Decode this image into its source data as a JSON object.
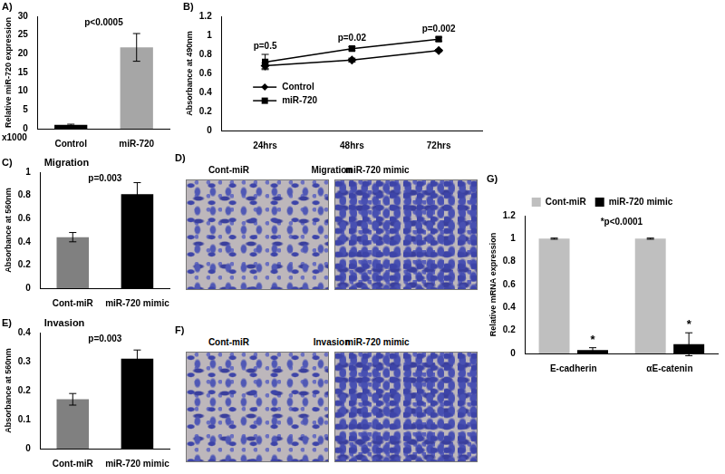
{
  "chart_data": [
    {
      "panel": "A)",
      "type": "bar",
      "categories": [
        "Control",
        "miR-720"
      ],
      "values": [
        1,
        21.7
      ],
      "errors": [
        0.2,
        3.7
      ],
      "colors": [
        "#000000",
        "#a6a6a6"
      ],
      "ylabel": "Relative miR-720 expression",
      "y_note": "x1000",
      "ylim": [
        0,
        30
      ],
      "yticks": [
        0,
        5,
        10,
        15,
        20,
        25,
        30
      ],
      "grid": false,
      "annotations": [
        {
          "text": "p<0.0005"
        }
      ]
    },
    {
      "panel": "B)",
      "type": "line",
      "categories": [
        "24hrs",
        "48hrs",
        "72hrs"
      ],
      "series": [
        {
          "name": "Control",
          "color": "#000000",
          "marker": "diamond",
          "values": [
            0.68,
            0.74,
            0.84
          ],
          "errors": [
            0.03,
            0.02,
            0.01
          ]
        },
        {
          "name": "miR-720",
          "color": "#000000",
          "marker": "square",
          "values": [
            0.72,
            0.86,
            0.96
          ],
          "errors": [
            0.08,
            0.02,
            0.02
          ]
        }
      ],
      "ylabel": "Absorbance at 490nm",
      "ylim": [
        0,
        1.2
      ],
      "yticks": [
        0,
        0.2,
        0.4,
        0.6,
        0.8,
        1,
        1.2
      ],
      "grid": false,
      "legend": "bottom",
      "annotations": [
        {
          "text": "p=0.5",
          "category": "24hrs"
        },
        {
          "text": "p=0.02",
          "category": "48hrs"
        },
        {
          "text": "p=0.002",
          "category": "72hrs"
        }
      ]
    },
    {
      "panel": "C)",
      "type": "bar",
      "title": "Migration",
      "categories": [
        "Cont-miR",
        "miR-720 mimic"
      ],
      "values": [
        0.44,
        0.81
      ],
      "errors": [
        0.04,
        0.1
      ],
      "colors": [
        "#808080",
        "#000000"
      ],
      "ylabel": "Absorbance at 560nm",
      "ylim": [
        0,
        1
      ],
      "yticks": [
        0,
        0.2,
        0.4,
        0.6,
        0.8,
        1
      ],
      "grid": false,
      "annotations": [
        {
          "text": "p=0.003"
        }
      ]
    },
    {
      "panel": "E)",
      "type": "bar",
      "title": "Invasion",
      "categories": [
        "Cont-miR",
        "miR-720 mimic"
      ],
      "values": [
        0.17,
        0.31
      ],
      "errors": [
        0.02,
        0.03
      ],
      "colors": [
        "#808080",
        "#000000"
      ],
      "ylabel": "Absorbance at 560nm",
      "ylim": [
        0,
        0.4
      ],
      "yticks": [
        0,
        0.1,
        0.2,
        0.3,
        0.4
      ],
      "grid": false,
      "annotations": [
        {
          "text": "p=0.003"
        }
      ]
    },
    {
      "panel": "G)",
      "type": "bar",
      "categories": [
        "E-cadherin",
        "αE-catenin"
      ],
      "series": [
        {
          "name": "Cont-miR",
          "color": "#bfbfbf",
          "values": [
            1,
            1
          ],
          "errors": [
            0.005,
            0.005
          ]
        },
        {
          "name": "miR-720 mimic",
          "color": "#000000",
          "values": [
            0.03,
            0.08
          ],
          "errors": [
            0.02,
            0.1
          ]
        }
      ],
      "ylabel": "Relative mRNA expression",
      "ylim": [
        0,
        1.2
      ],
      "yticks": [
        0,
        0.2,
        0.4,
        0.6,
        0.8,
        1,
        1.2
      ],
      "grid": false,
      "legend": "top",
      "annotations": [
        {
          "text": "*p<0.0001"
        },
        {
          "text": "*",
          "category": "E-cadherin",
          "series": "miR-720 mimic"
        },
        {
          "text": "*",
          "category": "αE-catenin",
          "series": "miR-720 mimic"
        }
      ]
    }
  ],
  "images": [
    {
      "panel": "D)",
      "title": "Migration",
      "labels": [
        "Cont-miR",
        "miR-720 mimic"
      ]
    },
    {
      "panel": "F)",
      "title": "Invasion",
      "labels": [
        "Cont-miR",
        "miR-720 mimic"
      ]
    }
  ]
}
